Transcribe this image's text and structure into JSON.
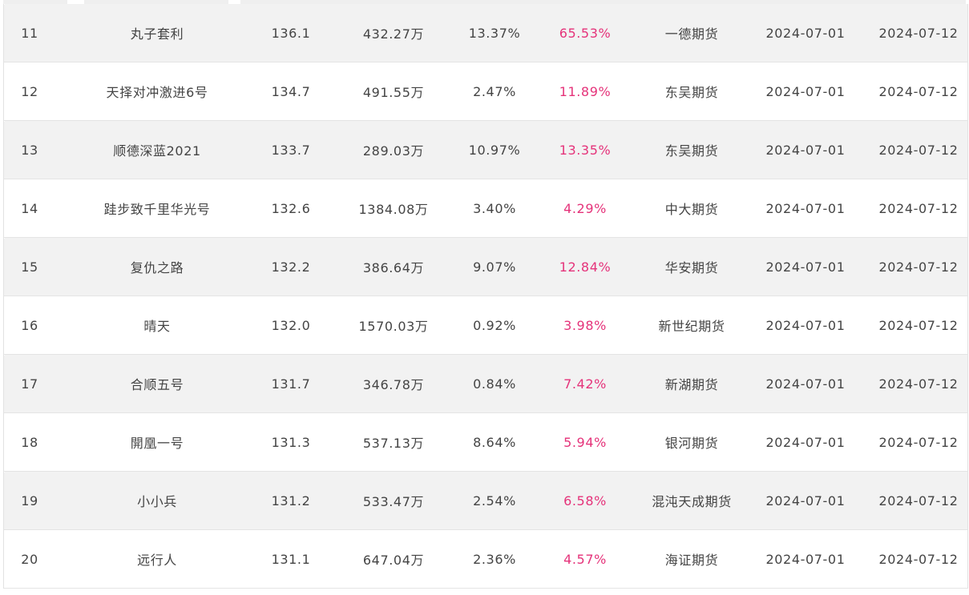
{
  "table": {
    "rows": [
      {
        "rank": "11",
        "name": "丸子套利",
        "score": "136.1",
        "scale": "432.27万",
        "return_a": "13.37%",
        "return_b": "65.53%",
        "broker": "一德期货",
        "start_date": "2024-07-01",
        "end_date": "2024-07-12"
      },
      {
        "rank": "12",
        "name": "天择对冲激进6号",
        "score": "134.7",
        "scale": "491.55万",
        "return_a": "2.47%",
        "return_b": "11.89%",
        "broker": "东吴期货",
        "start_date": "2024-07-01",
        "end_date": "2024-07-12"
      },
      {
        "rank": "13",
        "name": "顺德深蓝2021",
        "score": "133.7",
        "scale": "289.03万",
        "return_a": "10.97%",
        "return_b": "13.35%",
        "broker": "东吴期货",
        "start_date": "2024-07-01",
        "end_date": "2024-07-12"
      },
      {
        "rank": "14",
        "name": "跬步致千里华光号",
        "score": "132.6",
        "scale": "1384.08万",
        "return_a": "3.40%",
        "return_b": "4.29%",
        "broker": "中大期货",
        "start_date": "2024-07-01",
        "end_date": "2024-07-12"
      },
      {
        "rank": "15",
        "name": "复仇之路",
        "score": "132.2",
        "scale": "386.64万",
        "return_a": "9.07%",
        "return_b": "12.84%",
        "broker": "华安期货",
        "start_date": "2024-07-01",
        "end_date": "2024-07-12"
      },
      {
        "rank": "16",
        "name": "晴天",
        "score": "132.0",
        "scale": "1570.03万",
        "return_a": "0.92%",
        "return_b": "3.98%",
        "broker": "新世纪期货",
        "start_date": "2024-07-01",
        "end_date": "2024-07-12"
      },
      {
        "rank": "17",
        "name": "合顺五号",
        "score": "131.7",
        "scale": "346.78万",
        "return_a": "0.84%",
        "return_b": "7.42%",
        "broker": "新湖期货",
        "start_date": "2024-07-01",
        "end_date": "2024-07-12"
      },
      {
        "rank": "18",
        "name": "開凰一号",
        "score": "131.3",
        "scale": "537.13万",
        "return_a": "8.64%",
        "return_b": "5.94%",
        "broker": "银河期货",
        "start_date": "2024-07-01",
        "end_date": "2024-07-12"
      },
      {
        "rank": "19",
        "name": "小小兵",
        "score": "131.2",
        "scale": "533.47万",
        "return_a": "2.54%",
        "return_b": "6.58%",
        "broker": "混沌天成期货",
        "start_date": "2024-07-01",
        "end_date": "2024-07-12"
      },
      {
        "rank": "20",
        "name": "远行人",
        "score": "131.1",
        "scale": "647.04万",
        "return_a": "2.36%",
        "return_b": "4.57%",
        "broker": "海证期货",
        "start_date": "2024-07-01",
        "end_date": "2024-07-12"
      }
    ]
  },
  "colors": {
    "row_odd": "#f2f2f2",
    "row_even": "#ffffff",
    "text": "#444444",
    "return_highlight": "#e5337a",
    "border": "#e4e4e4"
  }
}
